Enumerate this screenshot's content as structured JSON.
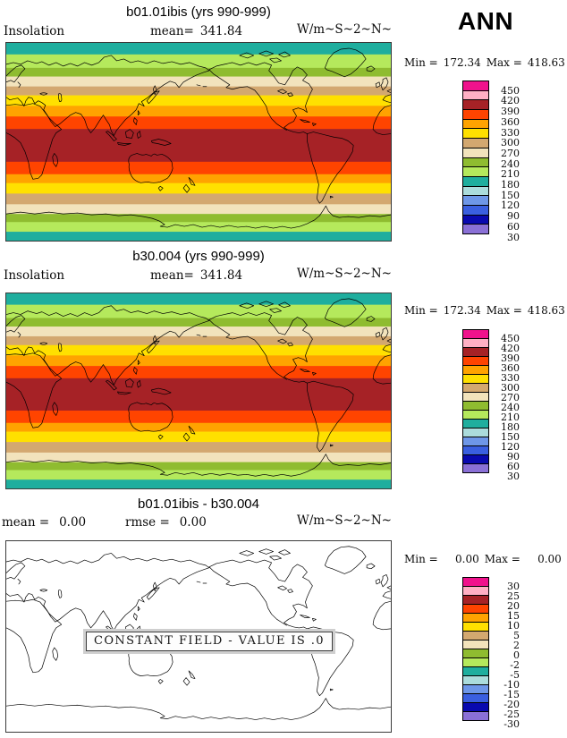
{
  "header": {
    "season_label": "ANN"
  },
  "palette": [
    "#F0128C",
    "#FFB0C4",
    "#A62226",
    "#FF4400",
    "#FFA300",
    "#FFE000",
    "#D3A870",
    "#F2E3BC",
    "#8FBC30",
    "#B5E95C",
    "#1FAE9E",
    "#ABDCDC",
    "#6E97E8",
    "#3A5FE0",
    "#0909AF",
    "#8A70D6"
  ],
  "colorbars": {
    "insolation": {
      "min_label": "Min =",
      "min_value": "172.34",
      "max_label": "Max =",
      "max_value": "418.63",
      "labels": [
        "450",
        "420",
        "390",
        "360",
        "330",
        "300",
        "270",
        "240",
        "210",
        "180",
        "150",
        "120",
        "90",
        "60",
        "30"
      ]
    },
    "difference": {
      "min_label": "Min =",
      "min_value": "0.00",
      "max_label": "Max =",
      "max_value": "0.00",
      "labels": [
        "30",
        "25",
        "20",
        "15",
        "10",
        "5",
        "2",
        "0",
        "-2",
        "-5",
        "-10",
        "-15",
        "-20",
        "-25",
        "-30"
      ]
    }
  },
  "map_bands": {
    "stops_pct": [
      0,
      5.8,
      12.6,
      17,
      22,
      26.5,
      31.8,
      37.2,
      43.5,
      60.1,
      66.4,
      70.9,
      76.2,
      81.6,
      86.5,
      90.6,
      95.5,
      100
    ],
    "palette_idx": [
      10,
      9,
      8,
      7,
      6,
      5,
      4,
      3,
      2,
      3,
      4,
      5,
      6,
      7,
      8,
      9,
      10
    ]
  },
  "panels": [
    {
      "title": "b01.01ibis (yrs 990-999)",
      "var_label": "Insolation",
      "mean_label": "mean=",
      "mean_value": "341.84",
      "units": "W/m~S~2~N~"
    },
    {
      "title": "b30.004 (yrs 990-999)",
      "var_label": "Insolation",
      "mean_label": "mean=",
      "mean_value": "341.84",
      "units": "W/m~S~2~N~"
    },
    {
      "title": "b01.01ibis - b30.004",
      "mean_label": "mean =",
      "mean_value": "0.00",
      "rmse_label": "rmse =",
      "rmse_value": "0.00",
      "units": "W/m~S~2~N~",
      "annotation": "CONSTANT FIELD - VALUE IS .0"
    }
  ],
  "chart_data": [
    {
      "type": "heatmap",
      "panel": 1,
      "title": "b01.01ibis (yrs 990-999)",
      "variable": "Insolation",
      "units": "W/m~S~2~N~",
      "season": "ANN",
      "statistics": {
        "mean": 341.84,
        "min": 172.34,
        "max": 418.63
      },
      "contour_levels": [
        30,
        60,
        90,
        120,
        150,
        180,
        210,
        240,
        270,
        300,
        330,
        360,
        390,
        420,
        450
      ],
      "projection": "cylindrical equidistant, lon 0-360, global",
      "field_description": "Zonally uniform annual-mean insolation; highest band (390-420) straddles the equator, lowest band (150-180) at both poles",
      "zonal_bands": [
        {
          "lat_range": "90N-79.6N",
          "value_range": "150-180"
        },
        {
          "lat_range": "79.6N-67.3N",
          "value_range": "180-210"
        },
        {
          "lat_range": "67.3N-59.4N",
          "value_range": "210-240"
        },
        {
          "lat_range": "59.4N-50.4N",
          "value_range": "240-270"
        },
        {
          "lat_range": "50.4N-42.3N",
          "value_range": "270-300"
        },
        {
          "lat_range": "42.3N-32.8N",
          "value_range": "300-330"
        },
        {
          "lat_range": "32.8N-23.0N",
          "value_range": "330-360"
        },
        {
          "lat_range": "23.0N-11.7N",
          "value_range": "360-390"
        },
        {
          "lat_range": "11.7N-18.2S",
          "value_range": "390-420"
        },
        {
          "lat_range": "18.2S-29.5S",
          "value_range": "360-390"
        },
        {
          "lat_range": "29.5S-37.6S",
          "value_range": "330-360"
        },
        {
          "lat_range": "37.6S-47.2S",
          "value_range": "300-330"
        },
        {
          "lat_range": "47.2S-56.9S",
          "value_range": "270-300"
        },
        {
          "lat_range": "56.9S-65.7S",
          "value_range": "240-270"
        },
        {
          "lat_range": "65.7S-73.1S",
          "value_range": "210-240"
        },
        {
          "lat_range": "73.1S-81.9S",
          "value_range": "180-210"
        },
        {
          "lat_range": "81.9S-90S",
          "value_range": "150-180"
        }
      ]
    },
    {
      "type": "heatmap",
      "panel": 2,
      "title": "b30.004 (yrs 990-999)",
      "variable": "Insolation",
      "units": "W/m~S~2~N~",
      "season": "ANN",
      "statistics": {
        "mean": 341.84,
        "min": 172.34,
        "max": 418.63
      },
      "contour_levels": [
        30,
        60,
        90,
        120,
        150,
        180,
        210,
        240,
        270,
        300,
        330,
        360,
        390,
        420,
        450
      ],
      "field_description": "Identical zonal insolation field to panel 1"
    },
    {
      "type": "heatmap",
      "panel": 3,
      "title": "b01.01ibis - b30.004",
      "variable": "Insolation difference",
      "units": "W/m~S~2~N~",
      "statistics": {
        "mean": 0.0,
        "rmse": 0.0,
        "min": 0.0,
        "max": 0.0
      },
      "contour_levels": [
        -30,
        -25,
        -20,
        -15,
        -10,
        -5,
        -2,
        0,
        2,
        5,
        10,
        15,
        20,
        25,
        30
      ],
      "field_description": "Uniform zero difference field",
      "annotation": "CONSTANT FIELD - VALUE IS .0"
    }
  ]
}
